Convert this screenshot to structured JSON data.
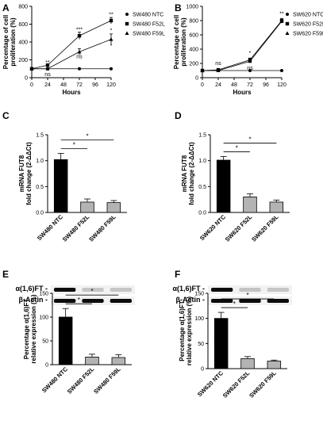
{
  "chart_data": [
    {
      "panel": "A",
      "type": "line",
      "xlabel": "Hours",
      "ylabel_lines": [
        "Percentage of cell",
        "proliferation (%)"
      ],
      "x": [
        0,
        24,
        72,
        120
      ],
      "xticks": [
        "0",
        "24",
        "48",
        "72",
        "96",
        "120"
      ],
      "xlim": [
        0,
        120
      ],
      "yticks": [
        "0",
        "200",
        "400",
        "600",
        "800"
      ],
      "ylim": [
        0,
        800
      ],
      "series": [
        {
          "name": "SW480 NTC",
          "marker": "circle",
          "values": [
            100,
            100,
            100,
            100
          ]
        },
        {
          "name": "SW480 F52L",
          "marker": "square",
          "values": [
            100,
            140,
            470,
            640
          ]
        },
        {
          "name": "SW480 F59L",
          "marker": "triangle",
          "values": [
            100,
            100,
            290,
            430
          ]
        }
      ],
      "errors": [
        [
          0,
          0,
          0,
          0
        ],
        [
          0,
          15,
          40,
          35
        ],
        [
          0,
          10,
          35,
          60
        ]
      ],
      "annotations": [
        {
          "text": "**",
          "x": 24,
          "y": 150
        },
        {
          "text": "ns",
          "x": 24,
          "y": 20
        },
        {
          "text": "***",
          "x": 72,
          "y": 520
        },
        {
          "text": "ns",
          "x": 72,
          "y": 220
        },
        {
          "text": "**",
          "x": 120,
          "y": 690
        },
        {
          "text": "*",
          "x": 120,
          "y": 510
        },
        {
          "text": "*",
          "x": 120,
          "y": 340
        }
      ]
    },
    {
      "panel": "B",
      "type": "line",
      "xlabel": "Hours",
      "ylabel_lines": [
        "Percentage of cell",
        "proliferation (%)"
      ],
      "x": [
        0,
        24,
        72,
        120
      ],
      "xticks": [
        "0",
        "24",
        "48",
        "72",
        "96",
        "120"
      ],
      "xlim": [
        0,
        120
      ],
      "yticks": [
        "0",
        "200",
        "400",
        "600",
        "800",
        "1000"
      ],
      "ylim": [
        0,
        1000
      ],
      "series": [
        {
          "name": "SW620 NTC",
          "marker": "circle",
          "values": [
            100,
            100,
            100,
            100
          ]
        },
        {
          "name": "SW620 F52L",
          "marker": "square",
          "values": [
            100,
            110,
            250,
            800
          ]
        },
        {
          "name": "SW620 F59L",
          "marker": "triangle",
          "values": [
            100,
            100,
            230,
            790
          ]
        }
      ],
      "errors": [
        [
          0,
          0,
          0,
          0
        ],
        [
          0,
          10,
          25,
          30
        ],
        [
          0,
          10,
          20,
          25
        ]
      ],
      "annotations": [
        {
          "text": "ns",
          "x": 24,
          "y": 180
        },
        {
          "text": "*",
          "x": 72,
          "y": 320
        },
        {
          "text": "ns",
          "x": 72,
          "y": 110
        },
        {
          "text": "**",
          "x": 120,
          "y": 870
        }
      ]
    },
    {
      "panel": "C",
      "type": "bar",
      "ylabel_lines": [
        "mRNA FUT8",
        "fold change (2-ΔΔCt)"
      ],
      "categories": [
        "SW480 NTC",
        "SW480 F52L",
        "SW480 F59L"
      ],
      "values": [
        1.02,
        0.2,
        0.19
      ],
      "errors": [
        0.12,
        0.06,
        0.04
      ],
      "yticks": [
        "0.0",
        "0.5",
        "1.0",
        "1.5"
      ],
      "ylim": [
        0,
        1.5
      ],
      "comparisons": [
        {
          "from": 0,
          "to": 1,
          "label": "*"
        },
        {
          "from": 0,
          "to": 2,
          "label": "*"
        }
      ]
    },
    {
      "panel": "D",
      "type": "bar",
      "ylabel_lines": [
        "mRNA FUT8",
        "fold change (2-ΔΔCt)"
      ],
      "categories": [
        "SW620 NTC",
        "SW620 F52L",
        "SW620 F59L"
      ],
      "values": [
        1.01,
        0.3,
        0.2
      ],
      "errors": [
        0.07,
        0.06,
        0.04
      ],
      "yticks": [
        "0.0",
        "0.5",
        "1.0",
        "1.5"
      ],
      "ylim": [
        0,
        1.5
      ],
      "comparisons": [
        {
          "from": 0,
          "to": 1,
          "label": "*"
        },
        {
          "from": 0,
          "to": 2,
          "label": "*"
        }
      ]
    },
    {
      "panel": "E",
      "type": "bar",
      "blot_labels": [
        "α(1,6)FT -",
        "β-Actin -"
      ],
      "ylabel_lines": [
        "Percentage α(1,6)FT",
        "relative expression (%)"
      ],
      "categories": [
        "SW480 NTC",
        "SW480 F52L",
        "SW480 F59L"
      ],
      "values": [
        100,
        16,
        15
      ],
      "errors": [
        18,
        6,
        6
      ],
      "yticks": [
        "0",
        "50",
        "100",
        "150"
      ],
      "ylim": [
        0,
        150
      ],
      "comparisons": [
        {
          "from": 0,
          "to": 1,
          "label": "*"
        },
        {
          "from": 0,
          "to": 2,
          "label": "*"
        }
      ]
    },
    {
      "panel": "F",
      "type": "bar",
      "blot_labels": [
        "α(1,6)FT -",
        "β-Actin -"
      ],
      "ylabel_lines": [
        "Percentage α(1,6)FT",
        "relative expression (%)"
      ],
      "categories": [
        "SW620 NTC",
        "SW620 F52L",
        "SW620 F59L"
      ],
      "values": [
        100,
        20,
        15
      ],
      "errors": [
        12,
        4,
        2
      ],
      "yticks": [
        "0",
        "50",
        "100",
        "150"
      ],
      "ylim": [
        0,
        150
      ],
      "comparisons": [
        {
          "from": 0,
          "to": 1,
          "label": "*"
        },
        {
          "from": 0,
          "to": 2,
          "label": "*"
        }
      ]
    }
  ],
  "colors": {
    "ntc": "#000000",
    "kd": "#b3b3b3",
    "axis": "#000000"
  }
}
